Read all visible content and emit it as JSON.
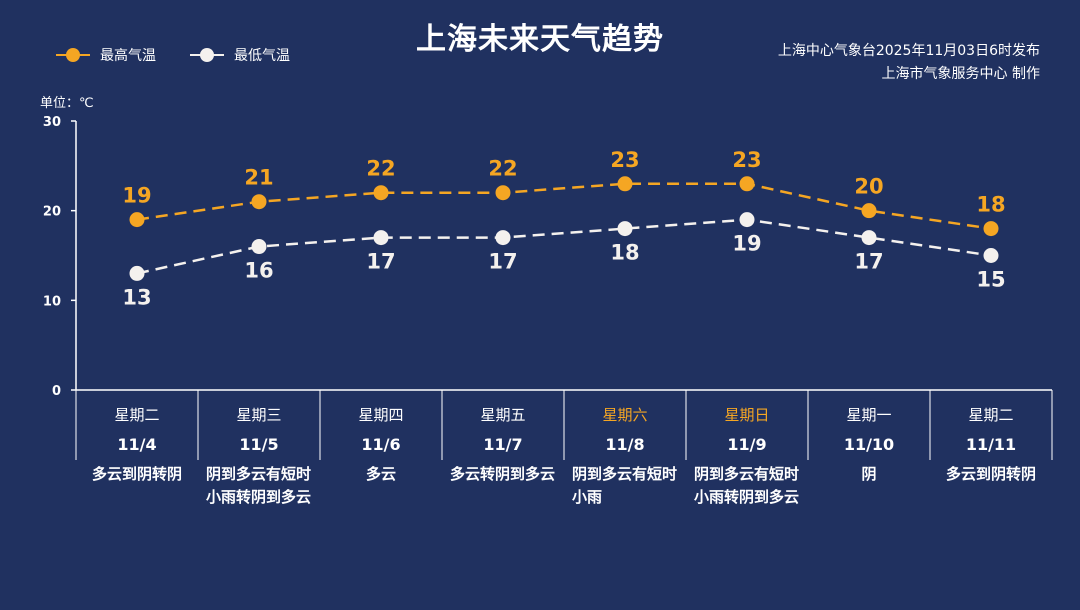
{
  "title": "上海未来天气趋势",
  "source": {
    "line1": "上海中心气象台2025年11月03日6时发布",
    "line2": "上海市气象服务中心 制作"
  },
  "legend": {
    "high": "最高气温",
    "low": "最低气温"
  },
  "unit_label": "单位：℃",
  "colors": {
    "background": "#203160",
    "high": "#f5a623",
    "low": "#f4f1ee",
    "weekend": "#f5a623"
  },
  "days": [
    {
      "weekday": "星期二",
      "date": "11/4",
      "condition": "多云到阴转阴",
      "weekend": false
    },
    {
      "weekday": "星期三",
      "date": "11/5",
      "condition": "阴到多云有短时小雨转阴到多云",
      "weekend": false
    },
    {
      "weekday": "星期四",
      "date": "11/6",
      "condition": "多云",
      "weekend": false
    },
    {
      "weekday": "星期五",
      "date": "11/7",
      "condition": "多云转阴到多云",
      "weekend": false
    },
    {
      "weekday": "星期六",
      "date": "11/8",
      "condition": "阴到多云有短时小雨",
      "weekend": true
    },
    {
      "weekday": "星期日",
      "date": "11/9",
      "condition": "阴到多云有短时小雨转阴到多云",
      "weekend": true
    },
    {
      "weekday": "星期一",
      "date": "11/10",
      "condition": "阴",
      "weekend": false
    },
    {
      "weekday": "星期二",
      "date": "11/11",
      "condition": "多云到阴转阴",
      "weekend": false
    }
  ],
  "chart_data": {
    "type": "line",
    "categories": [
      "11/4",
      "11/5",
      "11/6",
      "11/7",
      "11/8",
      "11/9",
      "11/10",
      "11/11"
    ],
    "series": [
      {
        "name": "最高气温",
        "values": [
          19,
          21,
          22,
          22,
          23,
          23,
          20,
          18
        ],
        "color": "#f5a623"
      },
      {
        "name": "最低气温",
        "values": [
          13,
          16,
          17,
          17,
          18,
          19,
          17,
          15
        ],
        "color": "#f4f1ee"
      }
    ],
    "ylabel": "单位：℃",
    "ylim": [
      0,
      30
    ],
    "yticks": [
      0,
      10,
      20,
      30
    ],
    "grid": false,
    "line_style": "dashed",
    "legend_position": "top-left"
  }
}
